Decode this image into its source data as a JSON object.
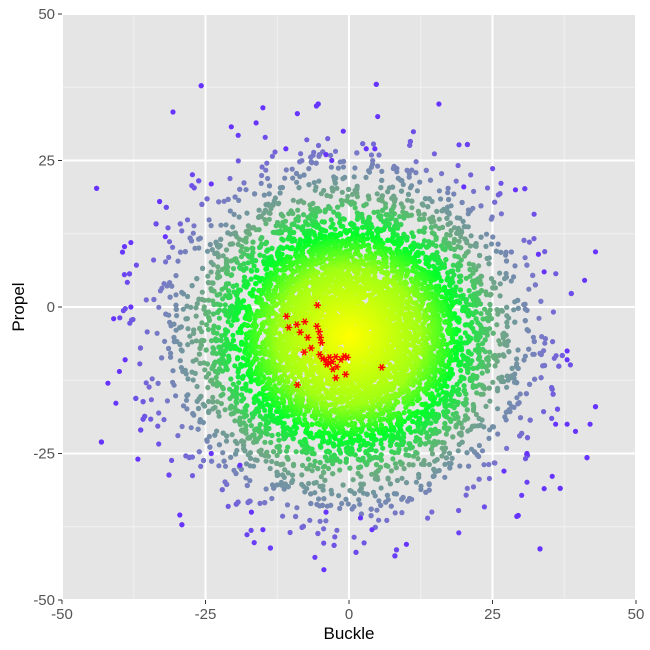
{
  "chart_data": {
    "type": "scatter",
    "title": "",
    "xlabel": "Buckle",
    "ylabel": "Propel",
    "xlim": [
      -50,
      50
    ],
    "ylim": [
      -50,
      50
    ],
    "x_ticks": [
      -50,
      -25,
      0,
      25,
      50
    ],
    "y_ticks": [
      -50,
      -25,
      0,
      25,
      50
    ],
    "x_tick_labels": [
      "-50",
      "-25",
      "0",
      "25",
      "50"
    ],
    "y_tick_labels": [
      "-50",
      "-25",
      "0",
      "25",
      "50"
    ],
    "grid": true,
    "background_color": "#e5e5e5",
    "gridline_color": "#ffffff",
    "cloud": {
      "description_visible": "dense point cloud centered near (0, -5), colored by density",
      "center": [
        0,
        -5
      ],
      "spread": [
        13,
        12
      ],
      "color_dense": "#ffff00",
      "color_mid": "#00ff00",
      "color_sparse": "#6633ff"
    },
    "outliers": [
      [
        -15,
        34
      ],
      [
        -9,
        33
      ],
      [
        5,
        32.5
      ],
      [
        -1,
        30
      ],
      [
        4.5,
        27
      ],
      [
        -11,
        27
      ],
      [
        -4,
        26
      ],
      [
        -3,
        25
      ],
      [
        3,
        27
      ],
      [
        29,
        20
      ],
      [
        20,
        20.5
      ],
      [
        -24,
        21
      ],
      [
        -33,
        18
      ],
      [
        -38,
        11
      ],
      [
        -32,
        12
      ],
      [
        33,
        9
      ],
      [
        34,
        6
      ],
      [
        -41,
        -2
      ],
      [
        -38,
        0
      ],
      [
        -39,
        -9
      ],
      [
        -40,
        -11
      ],
      [
        -42,
        -13
      ],
      [
        38,
        -7.5
      ],
      [
        38,
        -9
      ],
      [
        42,
        -20
      ],
      [
        38,
        -20
      ],
      [
        36,
        -20
      ],
      [
        34,
        -31
      ],
      [
        -17,
        -35
      ],
      [
        -15,
        -38
      ],
      [
        -4,
        -35
      ],
      [
        2,
        -36
      ],
      [
        4,
        -38
      ],
      [
        10,
        -40.5
      ],
      [
        27,
        -28
      ],
      [
        31,
        -25
      ],
      [
        -24,
        -25
      ],
      [
        -19,
        -27
      ]
    ],
    "series": [
      {
        "marker": "asterisk",
        "color": "#ff0000",
        "x": [
          -5.5,
          -10.9,
          -10.5,
          -9.1,
          -8.5,
          -7.7,
          -7.2,
          -6.6,
          -5.6,
          -5.2,
          -5,
          -4.8,
          -5.1,
          -7.8,
          -4.6,
          -3.9,
          -3.4,
          -2.9,
          -2.3,
          -2.1,
          -1.4,
          -0.8,
          -0.6,
          -2.8,
          -3.4,
          -4.1,
          -2.3,
          -0.3,
          5.7,
          -9
        ],
        "y": [
          0.3,
          -1.6,
          -3.5,
          -3,
          -4.3,
          -2.5,
          -5.2,
          -7,
          -3.3,
          -4.2,
          -5.2,
          -6.1,
          -8.1,
          -7.7,
          -8.8,
          -9.8,
          -8.6,
          -9.3,
          -8.5,
          -10.2,
          -9,
          -8.4,
          -11.5,
          -10.6,
          -9.6,
          -9,
          -12.1,
          -8.6,
          -10.3,
          -13.3
        ]
      }
    ]
  }
}
